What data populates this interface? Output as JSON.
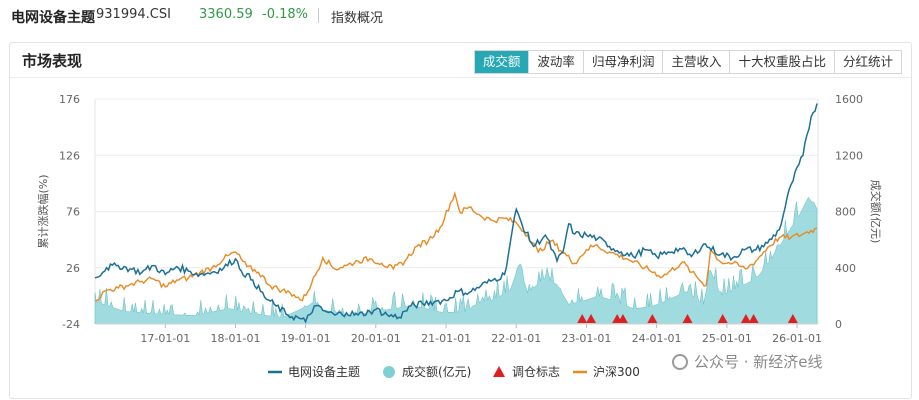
{
  "header": {
    "name": "电网设备主题",
    "code": "931994.CSI",
    "price": "3360.59",
    "change": "-0.18%",
    "link": "指数概况"
  },
  "panel": {
    "title": "市场表现",
    "tabs": [
      "成交额",
      "波动率",
      "归母净利润",
      "主营收入",
      "十大权重股占比",
      "分红统计"
    ],
    "active_tab": 0
  },
  "watermark": "公众号 · 新经济e线",
  "colors": {
    "index": "#1c6f96",
    "turnover": "#7fcfd4",
    "marker": "#e02020",
    "hs300": "#e88a22",
    "accent": "#27a8b5"
  },
  "chart_data": {
    "type": "line",
    "x_ticks": [
      "17-01-01",
      "18-01-01",
      "19-01-01",
      "20-01-01",
      "21-01-01",
      "22-01-01",
      "23-01-01",
      "24-01-01",
      "25-01-01",
      "26-01-01"
    ],
    "y_left": {
      "label": "累计涨跌幅(%)",
      "ticks": [
        176,
        126,
        76,
        26,
        -24
      ],
      "range": [
        -24,
        176
      ]
    },
    "y_right": {
      "label": "成交额(亿元)",
      "ticks": [
        1600,
        1200,
        800,
        400,
        0
      ],
      "range": [
        0,
        1600
      ]
    },
    "legend": [
      "电网设备主题",
      "成交额(亿元)",
      "调仓标志",
      "沪深300"
    ],
    "series": [
      {
        "name": "电网设备主题",
        "axis": "left",
        "points": [
          [
            "2016-01-01",
            17
          ],
          [
            "2016-03-01",
            26
          ],
          [
            "2016-05-01",
            28
          ],
          [
            "2016-07-01",
            25
          ],
          [
            "2016-09-01",
            22
          ],
          [
            "2016-11-01",
            28
          ],
          [
            "2017-01-01",
            20
          ],
          [
            "2017-03-01",
            27
          ],
          [
            "2017-05-01",
            23
          ],
          [
            "2017-07-01",
            20
          ],
          [
            "2017-09-01",
            22
          ],
          [
            "2017-11-01",
            26
          ],
          [
            "2018-01-01",
            34
          ],
          [
            "2018-02-01",
            23
          ],
          [
            "2018-04-01",
            15
          ],
          [
            "2018-06-01",
            0
          ],
          [
            "2018-08-01",
            -8
          ],
          [
            "2018-10-01",
            -16
          ],
          [
            "2018-12-01",
            -19
          ],
          [
            "2019-01-01",
            -22
          ],
          [
            "2019-02-15",
            -8
          ],
          [
            "2019-04-01",
            -12
          ],
          [
            "2019-06-01",
            -16
          ],
          [
            "2019-08-01",
            -14
          ],
          [
            "2019-10-01",
            -16
          ],
          [
            "2019-12-01",
            -13
          ],
          [
            "2020-01-01",
            -11
          ],
          [
            "2020-03-01",
            -16
          ],
          [
            "2020-05-01",
            -18
          ],
          [
            "2020-07-01",
            -8
          ],
          [
            "2020-09-01",
            -6
          ],
          [
            "2020-11-01",
            -4
          ],
          [
            "2021-01-01",
            -3
          ],
          [
            "2021-03-01",
            5
          ],
          [
            "2021-05-01",
            4
          ],
          [
            "2021-07-01",
            10
          ],
          [
            "2021-09-01",
            15
          ],
          [
            "2021-11-01",
            20
          ],
          [
            "2022-01-01",
            78
          ],
          [
            "2022-02-01",
            64
          ],
          [
            "2022-04-01",
            45
          ],
          [
            "2022-06-01",
            55
          ],
          [
            "2022-08-01",
            32
          ],
          [
            "2022-09-01",
            40
          ],
          [
            "2022-10-01",
            65
          ],
          [
            "2022-11-01",
            56
          ],
          [
            "2023-01-01",
            55
          ],
          [
            "2023-03-01",
            52
          ],
          [
            "2023-05-01",
            45
          ],
          [
            "2023-07-01",
            40
          ],
          [
            "2023-09-01",
            36
          ],
          [
            "2023-11-01",
            42
          ],
          [
            "2024-01-01",
            36
          ],
          [
            "2024-03-01",
            40
          ],
          [
            "2024-05-01",
            43
          ],
          [
            "2024-07-01",
            36
          ],
          [
            "2024-09-01",
            47
          ],
          [
            "2024-10-01",
            44
          ],
          [
            "2024-12-01",
            38
          ],
          [
            "2025-02-01",
            35
          ],
          [
            "2025-04-01",
            42
          ],
          [
            "2025-06-01",
            42
          ],
          [
            "2025-08-01",
            48
          ],
          [
            "2025-10-01",
            60
          ],
          [
            "2025-12-01",
            100
          ],
          [
            "2026-02-01",
            126
          ],
          [
            "2026-03-15",
            160
          ],
          [
            "2026-04-15",
            172
          ]
        ]
      },
      {
        "name": "沪深300",
        "axis": "left",
        "points": [
          [
            "2016-01-01",
            -3
          ],
          [
            "2016-03-01",
            6
          ],
          [
            "2016-05-01",
            8
          ],
          [
            "2016-07-01",
            11
          ],
          [
            "2016-09-01",
            14
          ],
          [
            "2016-11-01",
            16
          ],
          [
            "2017-01-01",
            9
          ],
          [
            "2017-03-01",
            15
          ],
          [
            "2017-05-01",
            17
          ],
          [
            "2017-07-01",
            22
          ],
          [
            "2017-09-01",
            26
          ],
          [
            "2017-11-01",
            34
          ],
          [
            "2018-01-01",
            40
          ],
          [
            "2018-03-01",
            27
          ],
          [
            "2018-05-01",
            22
          ],
          [
            "2018-07-01",
            10
          ],
          [
            "2018-09-01",
            6
          ],
          [
            "2018-11-01",
            2
          ],
          [
            "2018-12-15",
            -3
          ],
          [
            "2019-02-01",
            12
          ],
          [
            "2019-04-01",
            35
          ],
          [
            "2019-06-01",
            25
          ],
          [
            "2019-08-01",
            28
          ],
          [
            "2019-10-01",
            32
          ],
          [
            "2019-12-01",
            34
          ],
          [
            "2020-02-01",
            30
          ],
          [
            "2020-04-01",
            25
          ],
          [
            "2020-06-01",
            32
          ],
          [
            "2020-08-01",
            45
          ],
          [
            "2020-10-01",
            50
          ],
          [
            "2020-12-01",
            62
          ],
          [
            "2021-02-15",
            92
          ],
          [
            "2021-03-15",
            75
          ],
          [
            "2021-05-01",
            80
          ],
          [
            "2021-07-01",
            72
          ],
          [
            "2021-09-01",
            68
          ],
          [
            "2021-11-01",
            70
          ],
          [
            "2022-01-01",
            66
          ],
          [
            "2022-03-01",
            55
          ],
          [
            "2022-04-25",
            40
          ],
          [
            "2022-07-01",
            50
          ],
          [
            "2022-10-31",
            30
          ],
          [
            "2023-01-01",
            42
          ],
          [
            "2023-02-15",
            46
          ],
          [
            "2023-05-01",
            40
          ],
          [
            "2023-08-01",
            34
          ],
          [
            "2023-11-01",
            26
          ],
          [
            "2024-02-01",
            18
          ],
          [
            "2024-05-15",
            31
          ],
          [
            "2024-07-01",
            22
          ],
          [
            "2024-09-15",
            10
          ],
          [
            "2024-10-08",
            42
          ],
          [
            "2024-12-01",
            31
          ],
          [
            "2025-02-01",
            30
          ],
          [
            "2025-04-08",
            25
          ],
          [
            "2025-06-01",
            32
          ],
          [
            "2025-08-01",
            44
          ],
          [
            "2025-10-01",
            53
          ],
          [
            "2025-12-01",
            53
          ],
          [
            "2026-02-01",
            56
          ],
          [
            "2026-04-15",
            61
          ]
        ]
      },
      {
        "name": "成交额(亿元)",
        "axis": "right",
        "style": "area",
        "points": [
          [
            "2016-01-01",
            160
          ],
          [
            "2016-06-01",
            90
          ],
          [
            "2016-12-01",
            70
          ],
          [
            "2017-06-01",
            60
          ],
          [
            "2017-12-01",
            110
          ],
          [
            "2018-03-01",
            80
          ],
          [
            "2018-09-01",
            45
          ],
          [
            "2019-02-15",
            150
          ],
          [
            "2019-04-01",
            100
          ],
          [
            "2019-09-01",
            60
          ],
          [
            "2020-01-01",
            90
          ],
          [
            "2020-07-15",
            130
          ],
          [
            "2020-12-01",
            85
          ],
          [
            "2021-04-01",
            80
          ],
          [
            "2021-07-01",
            160
          ],
          [
            "2021-09-01",
            170
          ],
          [
            "2021-12-01",
            240
          ],
          [
            "2022-01-15",
            420
          ],
          [
            "2022-03-01",
            220
          ],
          [
            "2022-06-01",
            330
          ],
          [
            "2022-08-01",
            280
          ],
          [
            "2022-10-01",
            140
          ],
          [
            "2023-01-01",
            170
          ],
          [
            "2023-03-01",
            200
          ],
          [
            "2023-06-01",
            160
          ],
          [
            "2023-09-01",
            110
          ],
          [
            "2023-12-01",
            120
          ],
          [
            "2024-03-01",
            170
          ],
          [
            "2024-06-01",
            230
          ],
          [
            "2024-09-01",
            140
          ],
          [
            "2024-10-08",
            380
          ],
          [
            "2024-12-01",
            200
          ],
          [
            "2025-03-01",
            260
          ],
          [
            "2025-06-01",
            320
          ],
          [
            "2025-09-01",
            480
          ],
          [
            "2025-11-01",
            620
          ],
          [
            "2026-01-15",
            780
          ],
          [
            "2026-03-01",
            900
          ],
          [
            "2026-04-15",
            820
          ]
        ]
      }
    ],
    "rebalance_markers": [
      "2022-12-10",
      "2023-01-25",
      "2023-06-10",
      "2023-07-10",
      "2023-12-10",
      "2024-06-10",
      "2024-12-10",
      "2025-04-10",
      "2025-05-20",
      "2025-12-10"
    ]
  }
}
